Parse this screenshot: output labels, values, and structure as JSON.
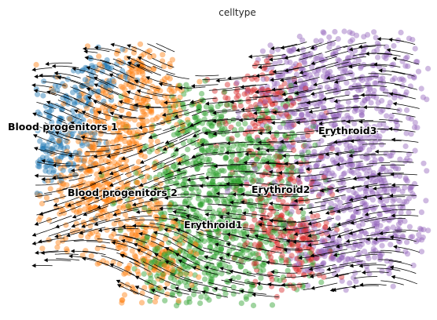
{
  "chart_data": {
    "type": "scatter",
    "title": "celltype",
    "xlabel": "",
    "ylabel": "",
    "grid": false,
    "legend": "on data",
    "overlay": "velocity streamlines",
    "series": [
      {
        "name": "Blood progenitors 1",
        "color": "#1f77b4",
        "label": "Blood progenitors 1"
      },
      {
        "name": "Blood progenitors 2",
        "color": "#ff7f0e",
        "label": "Blood progenitors 2"
      },
      {
        "name": "Erythroid1",
        "color": "#2ca02c",
        "label": "Erythroid1"
      },
      {
        "name": "Erythroid2",
        "color": "#d62728",
        "label": "Erythroid2"
      },
      {
        "name": "Erythroid3",
        "color": "#9467bd",
        "label": "Erythroid3"
      }
    ]
  }
}
